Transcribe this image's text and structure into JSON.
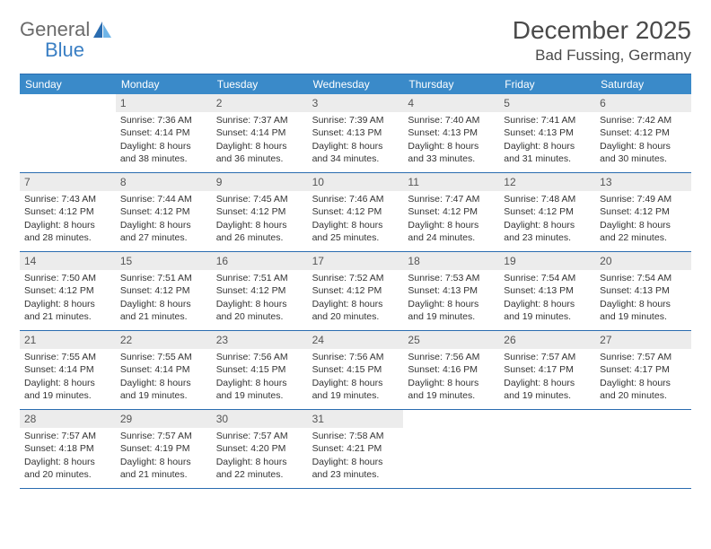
{
  "logo": {
    "line1": "General",
    "line2": "Blue"
  },
  "title": "December 2025",
  "location": "Bad Fussing, Germany",
  "weekdays": [
    "Sunday",
    "Monday",
    "Tuesday",
    "Wednesday",
    "Thursday",
    "Friday",
    "Saturday"
  ],
  "header_bg": "#3a8ac9",
  "rule_color": "#2a6cb0",
  "daynum_bg": "#ececec",
  "days": [
    {
      "num": "",
      "sunrise": "",
      "sunset": "",
      "daylight": ""
    },
    {
      "num": "1",
      "sunrise": "Sunrise: 7:36 AM",
      "sunset": "Sunset: 4:14 PM",
      "daylight": "Daylight: 8 hours and 38 minutes."
    },
    {
      "num": "2",
      "sunrise": "Sunrise: 7:37 AM",
      "sunset": "Sunset: 4:14 PM",
      "daylight": "Daylight: 8 hours and 36 minutes."
    },
    {
      "num": "3",
      "sunrise": "Sunrise: 7:39 AM",
      "sunset": "Sunset: 4:13 PM",
      "daylight": "Daylight: 8 hours and 34 minutes."
    },
    {
      "num": "4",
      "sunrise": "Sunrise: 7:40 AM",
      "sunset": "Sunset: 4:13 PM",
      "daylight": "Daylight: 8 hours and 33 minutes."
    },
    {
      "num": "5",
      "sunrise": "Sunrise: 7:41 AM",
      "sunset": "Sunset: 4:13 PM",
      "daylight": "Daylight: 8 hours and 31 minutes."
    },
    {
      "num": "6",
      "sunrise": "Sunrise: 7:42 AM",
      "sunset": "Sunset: 4:12 PM",
      "daylight": "Daylight: 8 hours and 30 minutes."
    },
    {
      "num": "7",
      "sunrise": "Sunrise: 7:43 AM",
      "sunset": "Sunset: 4:12 PM",
      "daylight": "Daylight: 8 hours and 28 minutes."
    },
    {
      "num": "8",
      "sunrise": "Sunrise: 7:44 AM",
      "sunset": "Sunset: 4:12 PM",
      "daylight": "Daylight: 8 hours and 27 minutes."
    },
    {
      "num": "9",
      "sunrise": "Sunrise: 7:45 AM",
      "sunset": "Sunset: 4:12 PM",
      "daylight": "Daylight: 8 hours and 26 minutes."
    },
    {
      "num": "10",
      "sunrise": "Sunrise: 7:46 AM",
      "sunset": "Sunset: 4:12 PM",
      "daylight": "Daylight: 8 hours and 25 minutes."
    },
    {
      "num": "11",
      "sunrise": "Sunrise: 7:47 AM",
      "sunset": "Sunset: 4:12 PM",
      "daylight": "Daylight: 8 hours and 24 minutes."
    },
    {
      "num": "12",
      "sunrise": "Sunrise: 7:48 AM",
      "sunset": "Sunset: 4:12 PM",
      "daylight": "Daylight: 8 hours and 23 minutes."
    },
    {
      "num": "13",
      "sunrise": "Sunrise: 7:49 AM",
      "sunset": "Sunset: 4:12 PM",
      "daylight": "Daylight: 8 hours and 22 minutes."
    },
    {
      "num": "14",
      "sunrise": "Sunrise: 7:50 AM",
      "sunset": "Sunset: 4:12 PM",
      "daylight": "Daylight: 8 hours and 21 minutes."
    },
    {
      "num": "15",
      "sunrise": "Sunrise: 7:51 AM",
      "sunset": "Sunset: 4:12 PM",
      "daylight": "Daylight: 8 hours and 21 minutes."
    },
    {
      "num": "16",
      "sunrise": "Sunrise: 7:51 AM",
      "sunset": "Sunset: 4:12 PM",
      "daylight": "Daylight: 8 hours and 20 minutes."
    },
    {
      "num": "17",
      "sunrise": "Sunrise: 7:52 AM",
      "sunset": "Sunset: 4:12 PM",
      "daylight": "Daylight: 8 hours and 20 minutes."
    },
    {
      "num": "18",
      "sunrise": "Sunrise: 7:53 AM",
      "sunset": "Sunset: 4:13 PM",
      "daylight": "Daylight: 8 hours and 19 minutes."
    },
    {
      "num": "19",
      "sunrise": "Sunrise: 7:54 AM",
      "sunset": "Sunset: 4:13 PM",
      "daylight": "Daylight: 8 hours and 19 minutes."
    },
    {
      "num": "20",
      "sunrise": "Sunrise: 7:54 AM",
      "sunset": "Sunset: 4:13 PM",
      "daylight": "Daylight: 8 hours and 19 minutes."
    },
    {
      "num": "21",
      "sunrise": "Sunrise: 7:55 AM",
      "sunset": "Sunset: 4:14 PM",
      "daylight": "Daylight: 8 hours and 19 minutes."
    },
    {
      "num": "22",
      "sunrise": "Sunrise: 7:55 AM",
      "sunset": "Sunset: 4:14 PM",
      "daylight": "Daylight: 8 hours and 19 minutes."
    },
    {
      "num": "23",
      "sunrise": "Sunrise: 7:56 AM",
      "sunset": "Sunset: 4:15 PM",
      "daylight": "Daylight: 8 hours and 19 minutes."
    },
    {
      "num": "24",
      "sunrise": "Sunrise: 7:56 AM",
      "sunset": "Sunset: 4:15 PM",
      "daylight": "Daylight: 8 hours and 19 minutes."
    },
    {
      "num": "25",
      "sunrise": "Sunrise: 7:56 AM",
      "sunset": "Sunset: 4:16 PM",
      "daylight": "Daylight: 8 hours and 19 minutes."
    },
    {
      "num": "26",
      "sunrise": "Sunrise: 7:57 AM",
      "sunset": "Sunset: 4:17 PM",
      "daylight": "Daylight: 8 hours and 19 minutes."
    },
    {
      "num": "27",
      "sunrise": "Sunrise: 7:57 AM",
      "sunset": "Sunset: 4:17 PM",
      "daylight": "Daylight: 8 hours and 20 minutes."
    },
    {
      "num": "28",
      "sunrise": "Sunrise: 7:57 AM",
      "sunset": "Sunset: 4:18 PM",
      "daylight": "Daylight: 8 hours and 20 minutes."
    },
    {
      "num": "29",
      "sunrise": "Sunrise: 7:57 AM",
      "sunset": "Sunset: 4:19 PM",
      "daylight": "Daylight: 8 hours and 21 minutes."
    },
    {
      "num": "30",
      "sunrise": "Sunrise: 7:57 AM",
      "sunset": "Sunset: 4:20 PM",
      "daylight": "Daylight: 8 hours and 22 minutes."
    },
    {
      "num": "31",
      "sunrise": "Sunrise: 7:58 AM",
      "sunset": "Sunset: 4:21 PM",
      "daylight": "Daylight: 8 hours and 23 minutes."
    },
    {
      "num": "",
      "sunrise": "",
      "sunset": "",
      "daylight": ""
    },
    {
      "num": "",
      "sunrise": "",
      "sunset": "",
      "daylight": ""
    },
    {
      "num": "",
      "sunrise": "",
      "sunset": "",
      "daylight": ""
    }
  ]
}
